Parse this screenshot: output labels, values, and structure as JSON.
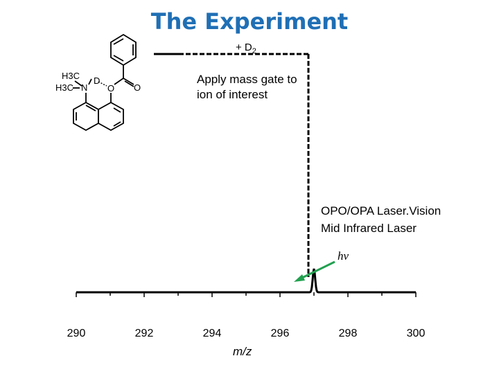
{
  "title": "The Experiment",
  "reagent": {
    "prefix": "+ D",
    "subscript": "2"
  },
  "mass_gate": {
    "line1": "Apply mass gate to",
    "line2": "ion of interest"
  },
  "laser": {
    "line1": "OPO/OPA Laser.Vision",
    "line2": "Mid Infrared Laser"
  },
  "photon_label": "hν",
  "molecule": {
    "methyl_1": "H3C",
    "methyl_2": "H3C",
    "nitrogen": "N",
    "deuterium": "D",
    "ether_oxygen": "O",
    "carbonyl_oxygen": "O"
  },
  "colors": {
    "title": "#1f6fb5",
    "arrow": "#22a050"
  },
  "chart_data": {
    "type": "line",
    "xlabel": "m/z",
    "ylabel": "",
    "title": "",
    "xlim": [
      290,
      300
    ],
    "x_ticks": [
      "290",
      "292",
      "294",
      "296",
      "298",
      "300"
    ],
    "peak": {
      "x": 297,
      "relative_height": 1.0
    }
  }
}
